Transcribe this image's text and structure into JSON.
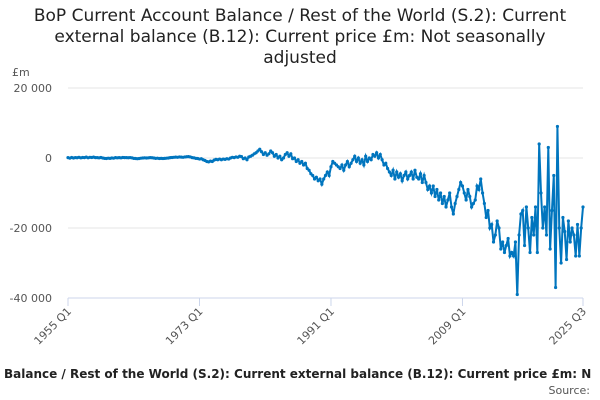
{
  "chart_data": {
    "type": "line",
    "title": "BoP Current Account Balance / Rest of the World (S.2): Current external balance (B.12): Current price £m: Not seasonally adjusted",
    "y_label": "£m",
    "footer": "Balance / Rest of the World (S.2): Current external balance (B.12): Current price £m: N",
    "source": "Source:",
    "color": "#0075be",
    "grid": true,
    "markers": true,
    "ylim": [
      -40000,
      20000
    ],
    "yticks": [
      {
        "value": -40000,
        "label": "-40 000"
      },
      {
        "value": -20000,
        "label": "-20 000"
      },
      0,
      {
        "value": 20000,
        "label": "20 000"
      }
    ],
    "xticks": [
      0,
      72,
      144,
      216,
      282
    ],
    "categories": [
      "1955 Q1",
      "1955 Q2",
      "1955 Q3",
      "1955 Q4",
      "1956 Q1",
      "1956 Q2",
      "1956 Q3",
      "1956 Q4",
      "1957 Q1",
      "1957 Q2",
      "1957 Q3",
      "1957 Q4",
      "1958 Q1",
      "1958 Q2",
      "1958 Q3",
      "1958 Q4",
      "1959 Q1",
      "1959 Q2",
      "1959 Q3",
      "1959 Q4",
      "1960 Q1",
      "1960 Q2",
      "1960 Q3",
      "1960 Q4",
      "1961 Q1",
      "1961 Q2",
      "1961 Q3",
      "1961 Q4",
      "1962 Q1",
      "1962 Q2",
      "1962 Q3",
      "1962 Q4",
      "1963 Q1",
      "1963 Q2",
      "1963 Q3",
      "1963 Q4",
      "1964 Q1",
      "1964 Q2",
      "1964 Q3",
      "1964 Q4",
      "1965 Q1",
      "1965 Q2",
      "1965 Q3",
      "1965 Q4",
      "1966 Q1",
      "1966 Q2",
      "1966 Q3",
      "1966 Q4",
      "1967 Q1",
      "1967 Q2",
      "1967 Q3",
      "1967 Q4",
      "1968 Q1",
      "1968 Q2",
      "1968 Q3",
      "1968 Q4",
      "1969 Q1",
      "1969 Q2",
      "1969 Q3",
      "1969 Q4",
      "1970 Q1",
      "1970 Q2",
      "1970 Q3",
      "1970 Q4",
      "1971 Q1",
      "1971 Q2",
      "1971 Q3",
      "1971 Q4",
      "1972 Q1",
      "1972 Q2",
      "1972 Q3",
      "1972 Q4",
      "1973 Q1",
      "1973 Q2",
      "1973 Q3",
      "1973 Q4",
      "1974 Q1",
      "1974 Q2",
      "1974 Q3",
      "1974 Q4",
      "1975 Q1",
      "1975 Q2",
      "1975 Q3",
      "1975 Q4",
      "1976 Q1",
      "1976 Q2",
      "1976 Q3",
      "1976 Q4",
      "1977 Q1",
      "1977 Q2",
      "1977 Q3",
      "1977 Q4",
      "1978 Q1",
      "1978 Q2",
      "1978 Q3",
      "1978 Q4",
      "1979 Q1",
      "1979 Q2",
      "1979 Q3",
      "1979 Q4",
      "1980 Q1",
      "1980 Q2",
      "1980 Q3",
      "1980 Q4",
      "1981 Q1",
      "1981 Q2",
      "1981 Q3",
      "1981 Q4",
      "1982 Q1",
      "1982 Q2",
      "1982 Q3",
      "1982 Q4",
      "1983 Q1",
      "1983 Q2",
      "1983 Q3",
      "1983 Q4",
      "1984 Q1",
      "1984 Q2",
      "1984 Q3",
      "1984 Q4",
      "1985 Q1",
      "1985 Q2",
      "1985 Q3",
      "1985 Q4",
      "1986 Q1",
      "1986 Q2",
      "1986 Q3",
      "1986 Q4",
      "1987 Q1",
      "1987 Q2",
      "1987 Q3",
      "1987 Q4",
      "1988 Q1",
      "1988 Q2",
      "1988 Q3",
      "1988 Q4",
      "1989 Q1",
      "1989 Q2",
      "1989 Q3",
      "1989 Q4",
      "1990 Q1",
      "1990 Q2",
      "1990 Q3",
      "1990 Q4",
      "1991 Q1",
      "1991 Q2",
      "1991 Q3",
      "1991 Q4",
      "1992 Q1",
      "1992 Q2",
      "1992 Q3",
      "1992 Q4",
      "1993 Q1",
      "1993 Q2",
      "1993 Q3",
      "1993 Q4",
      "1994 Q1",
      "1994 Q2",
      "1994 Q3",
      "1994 Q4",
      "1995 Q1",
      "1995 Q2",
      "1995 Q3",
      "1995 Q4",
      "1996 Q1",
      "1996 Q2",
      "1996 Q3",
      "1996 Q4",
      "1997 Q1",
      "1997 Q2",
      "1997 Q3",
      "1997 Q4",
      "1998 Q1",
      "1998 Q2",
      "1998 Q3",
      "1998 Q4",
      "1999 Q1",
      "1999 Q2",
      "1999 Q3",
      "1999 Q4",
      "2000 Q1",
      "2000 Q2",
      "2000 Q3",
      "2000 Q4",
      "2001 Q1",
      "2001 Q2",
      "2001 Q3",
      "2001 Q4",
      "2002 Q1",
      "2002 Q2",
      "2002 Q3",
      "2002 Q4",
      "2003 Q1",
      "2003 Q2",
      "2003 Q3",
      "2003 Q4",
      "2004 Q1",
      "2004 Q2",
      "2004 Q3",
      "2004 Q4",
      "2005 Q1",
      "2005 Q2",
      "2005 Q3",
      "2005 Q4",
      "2006 Q1",
      "2006 Q2",
      "2006 Q3",
      "2006 Q4",
      "2007 Q1",
      "2007 Q2",
      "2007 Q3",
      "2007 Q4",
      "2008 Q1",
      "2008 Q2",
      "2008 Q3",
      "2008 Q4",
      "2009 Q1",
      "2009 Q2",
      "2009 Q3",
      "2009 Q4",
      "2010 Q1",
      "2010 Q2",
      "2010 Q3",
      "2010 Q4",
      "2011 Q1",
      "2011 Q2",
      "2011 Q3",
      "2011 Q4",
      "2012 Q1",
      "2012 Q2",
      "2012 Q3",
      "2012 Q4",
      "2013 Q1",
      "2013 Q2",
      "2013 Q3",
      "2013 Q4",
      "2014 Q1",
      "2014 Q2",
      "2014 Q3",
      "2014 Q4",
      "2015 Q1",
      "2015 Q2",
      "2015 Q3",
      "2015 Q4",
      "2016 Q1",
      "2016 Q2",
      "2016 Q3",
      "2016 Q4",
      "2017 Q1",
      "2017 Q2",
      "2017 Q3",
      "2017 Q4",
      "2018 Q1",
      "2018 Q2",
      "2018 Q3",
      "2018 Q4",
      "2019 Q1",
      "2019 Q2",
      "2019 Q3",
      "2019 Q4",
      "2020 Q1",
      "2020 Q2",
      "2020 Q3",
      "2020 Q4",
      "2021 Q1",
      "2021 Q2",
      "2021 Q3",
      "2021 Q4",
      "2022 Q1",
      "2022 Q2",
      "2022 Q3",
      "2022 Q4",
      "2023 Q1",
      "2023 Q2",
      "2023 Q3",
      "2023 Q4",
      "2024 Q1",
      "2024 Q2",
      "2024 Q3",
      "2024 Q4",
      "2025 Q1",
      "2025 Q2",
      "2025 Q3"
    ],
    "values": [
      100,
      -50,
      150,
      0,
      120,
      80,
      200,
      50,
      150,
      100,
      250,
      60,
      200,
      150,
      250,
      100,
      100,
      50,
      150,
      0,
      -100,
      -150,
      -50,
      -100,
      0,
      -50,
      100,
      50,
      100,
      50,
      150,
      100,
      100,
      80,
      120,
      50,
      -100,
      -150,
      -200,
      -150,
      -50,
      0,
      50,
      0,
      50,
      100,
      80,
      0,
      -100,
      -50,
      -150,
      -100,
      -150,
      -100,
      -50,
      0,
      100,
      150,
      200,
      250,
      200,
      300,
      250,
      200,
      300,
      350,
      400,
      300,
      100,
      50,
      -100,
      -150,
      -300,
      -200,
      -500,
      -700,
      -1000,
      -1100,
      -900,
      -1000,
      -600,
      -400,
      -500,
      -300,
      -500,
      -300,
      -400,
      -200,
      -300,
      0,
      200,
      100,
      300,
      200,
      500,
      400,
      -200,
      0,
      -500,
      300,
      500,
      800,
      1200,
      1500,
      2000,
      2500,
      1800,
      1000,
      1500,
      800,
      1200,
      2000,
      1500,
      500,
      1000,
      0,
      500,
      -500,
      0,
      1000,
      1500,
      500,
      1200,
      -200,
      0,
      -1000,
      -500,
      -1500,
      -1000,
      -2000,
      -1500,
      -3000,
      -3500,
      -4500,
      -5000,
      -6000,
      -5500,
      -6500,
      -6000,
      -7500,
      -6000,
      -5000,
      -4000,
      -5000,
      -2500,
      -1000,
      -1500,
      -2000,
      -2500,
      -3000,
      -2000,
      -3500,
      -2000,
      -1000,
      -2500,
      -1500,
      -500,
      500,
      -1000,
      0,
      -1500,
      -500,
      -2000,
      500,
      -1000,
      0,
      -500,
      1000,
      500,
      1500,
      0,
      1000,
      -500,
      -2000,
      -1500,
      -3000,
      -4000,
      -5000,
      -3500,
      -6000,
      -4000,
      -5500,
      -4500,
      -6500,
      -5000,
      -4000,
      -6000,
      -5000,
      -4000,
      -6000,
      -3500,
      -5500,
      -6000,
      -4500,
      -7000,
      -5000,
      -7000,
      -9000,
      -8000,
      -10000,
      -8000,
      -11000,
      -9000,
      -12000,
      -10000,
      -13000,
      -11000,
      -14000,
      -12000,
      -10000,
      -14000,
      -16000,
      -13000,
      -11000,
      -9000,
      -7000,
      -8000,
      -10000,
      -12000,
      -9000,
      -11000,
      -14000,
      -13000,
      -12000,
      -8000,
      -9000,
      -6000,
      -10000,
      -13000,
      -17000,
      -15000,
      -20000,
      -19000,
      -24000,
      -22000,
      -18000,
      -20000,
      -26000,
      -24000,
      -27000,
      -25000,
      -23000,
      -28000,
      -27000,
      -28000,
      -24000,
      -39000,
      -22000,
      -16000,
      -15000,
      -25000,
      -14000,
      -20000,
      -27000,
      -17000,
      -22000,
      -14000,
      -27000,
      4000,
      -10000,
      -20000,
      -14000,
      -22000,
      3000,
      -26000,
      -15000,
      -5000,
      -37000,
      9000,
      -20000,
      -30000,
      -17000,
      -21000,
      -29000,
      -18000,
      -24000,
      -20000,
      -22000,
      -28000,
      -19000,
      -28000,
      -20000,
      -14000
    ]
  }
}
